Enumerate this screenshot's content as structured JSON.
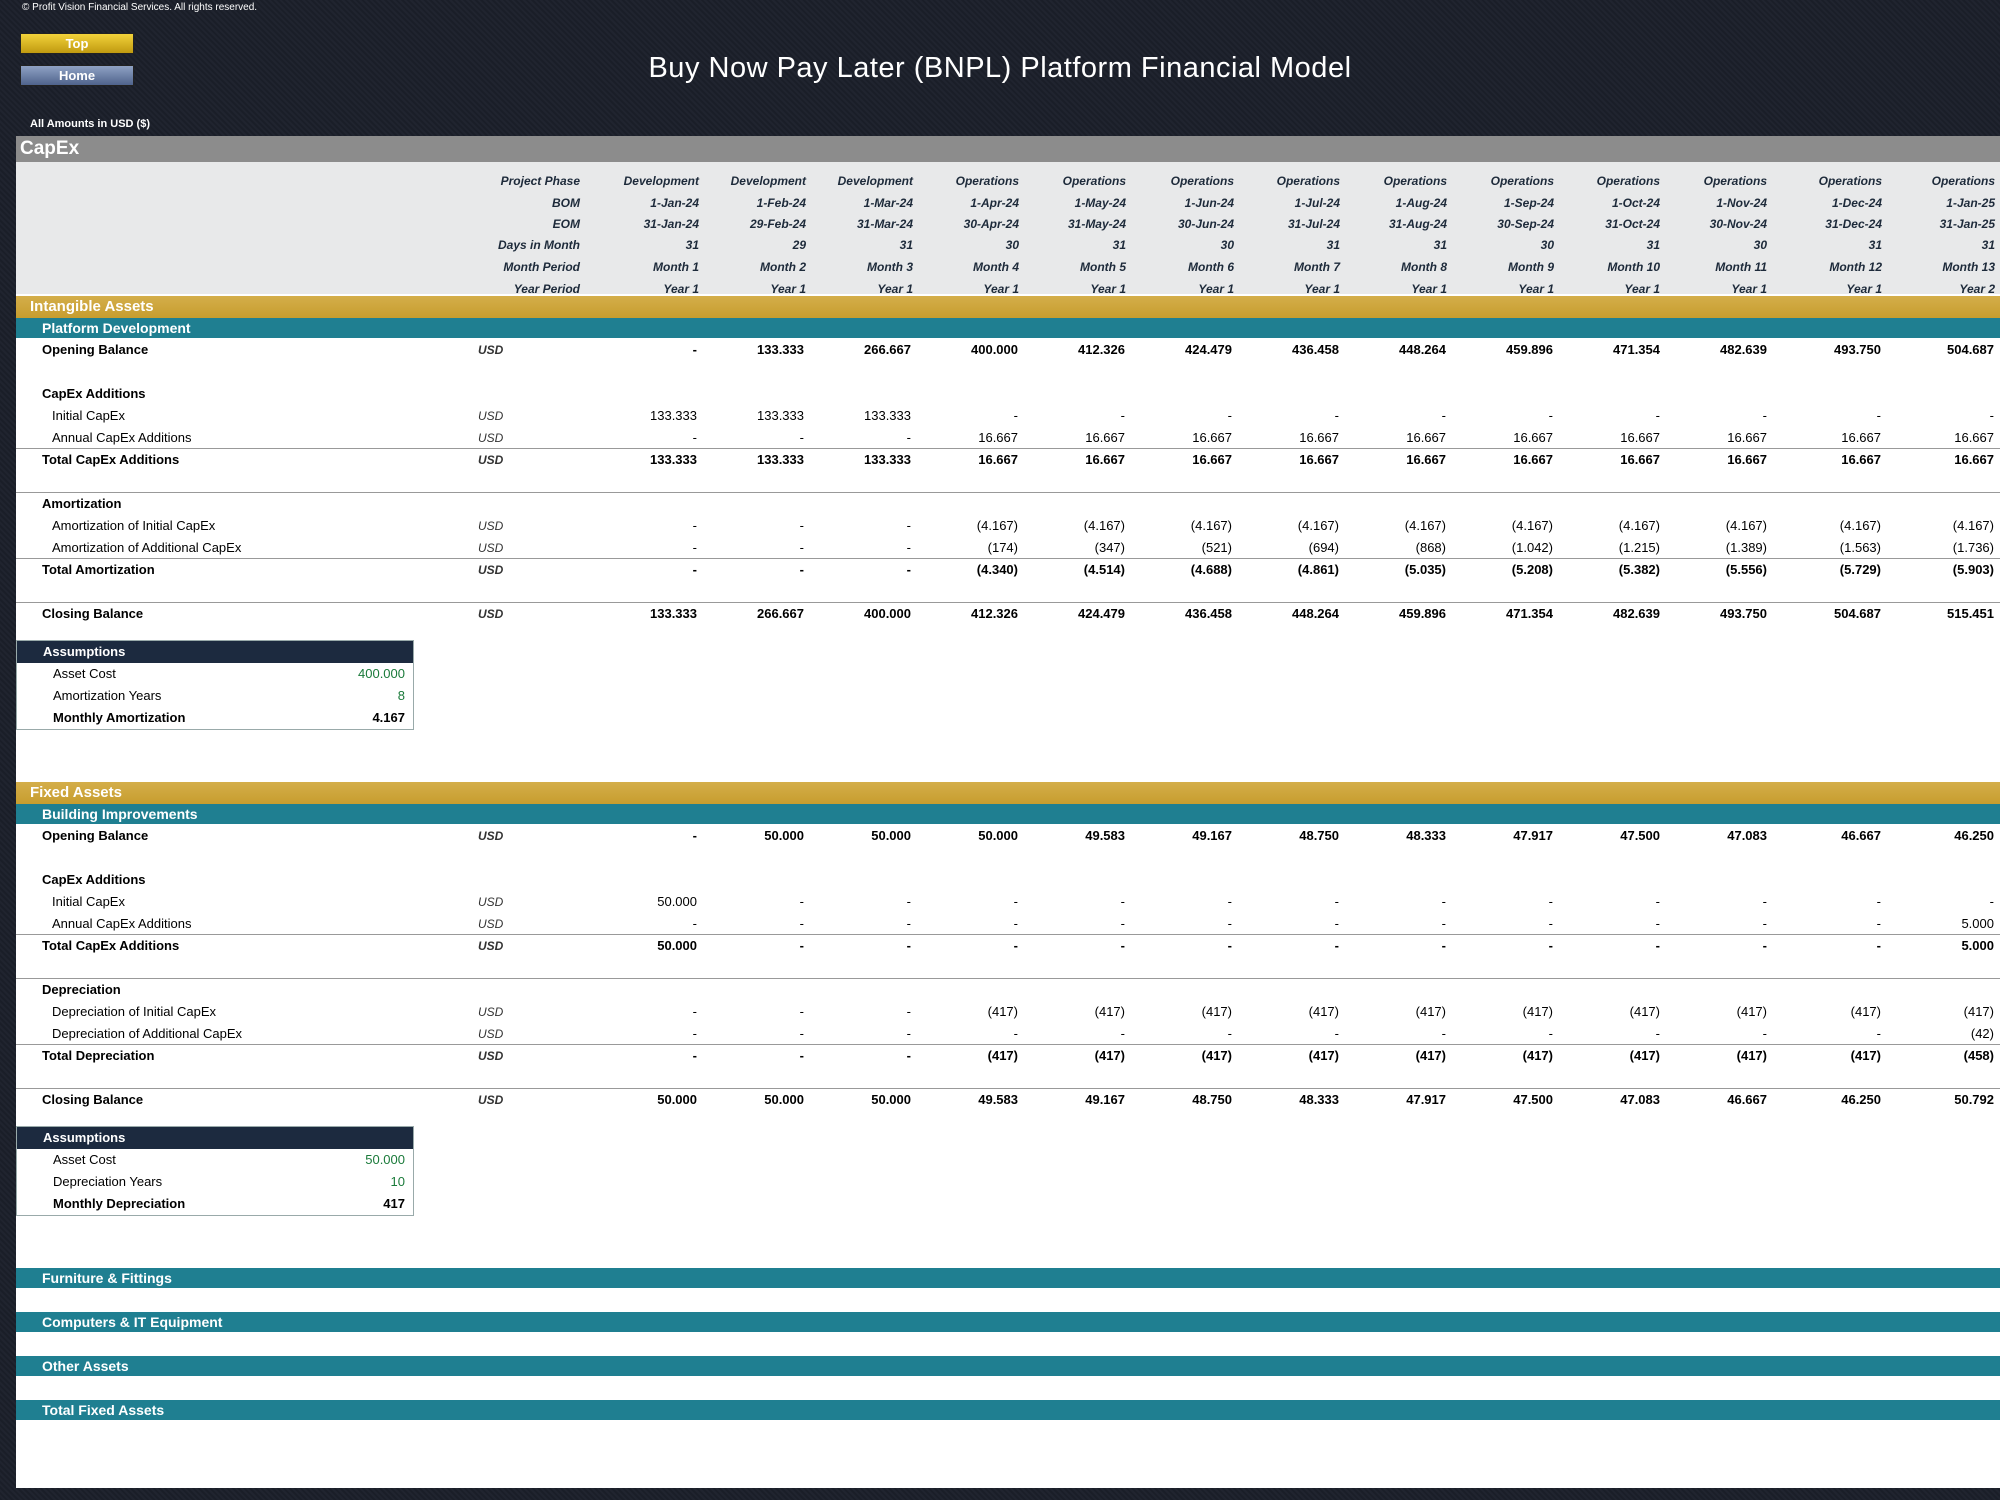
{
  "copyright": "© Profit Vision Financial Services. All rights reserved.",
  "nav": {
    "top": "Top",
    "home": "Home"
  },
  "title": "Buy Now Pay Later (BNPL) Platform Financial Model",
  "amounts_note": "All Amounts in  USD ($)",
  "section_title": "CapEx",
  "header_rows": [
    {
      "label": "Project Phase",
      "values": [
        "Development",
        "Development",
        "Development",
        "Operations",
        "Operations",
        "Operations",
        "Operations",
        "Operations",
        "Operations",
        "Operations",
        "Operations",
        "Operations",
        "Operations"
      ]
    },
    {
      "label": "BOM",
      "values": [
        "1-Jan-24",
        "1-Feb-24",
        "1-Mar-24",
        "1-Apr-24",
        "1-May-24",
        "1-Jun-24",
        "1-Jul-24",
        "1-Aug-24",
        "1-Sep-24",
        "1-Oct-24",
        "1-Nov-24",
        "1-Dec-24",
        "1-Jan-25"
      ]
    },
    {
      "label": "EOM",
      "values": [
        "31-Jan-24",
        "29-Feb-24",
        "31-Mar-24",
        "30-Apr-24",
        "31-May-24",
        "30-Jun-24",
        "31-Jul-24",
        "31-Aug-24",
        "30-Sep-24",
        "31-Oct-24",
        "30-Nov-24",
        "31-Dec-24",
        "31-Jan-25"
      ]
    },
    {
      "label": "Days in Month",
      "values": [
        "31",
        "29",
        "31",
        "30",
        "31",
        "30",
        "31",
        "31",
        "30",
        "31",
        "30",
        "31",
        "31"
      ]
    },
    {
      "label": "Month Period",
      "values": [
        "Month 1",
        "Month 2",
        "Month 3",
        "Month 4",
        "Month 5",
        "Month 6",
        "Month 7",
        "Month 8",
        "Month 9",
        "Month 10",
        "Month 11",
        "Month 12",
        "Month 13"
      ]
    },
    {
      "label": "Year Period",
      "values": [
        "Year 1",
        "Year 1",
        "Year 1",
        "Year 1",
        "Year 1",
        "Year 1",
        "Year 1",
        "Year 1",
        "Year 1",
        "Year 1",
        "Year 1",
        "Year 1",
        "Year 2"
      ]
    }
  ],
  "intangible": {
    "title": "Intangible Assets",
    "sub": "Platform Development",
    "rows": [
      {
        "label": "Opening Balance",
        "unit": "USD",
        "bold": true,
        "values": [
          "-",
          "133.333",
          "266.667",
          "400.000",
          "412.326",
          "424.479",
          "436.458",
          "448.264",
          "459.896",
          "471.354",
          "482.639",
          "493.750",
          "504.687"
        ]
      },
      {
        "label": "CapEx Additions",
        "bold": true,
        "values": []
      },
      {
        "label": "Initial CapEx",
        "unit": "USD",
        "indent": true,
        "values": [
          "133.333",
          "133.333",
          "133.333",
          "-",
          "-",
          "-",
          "-",
          "-",
          "-",
          "-",
          "-",
          "-",
          "-"
        ]
      },
      {
        "label": "Annual CapEx Additions",
        "unit": "USD",
        "indent": true,
        "values": [
          "-",
          "-",
          "-",
          "16.667",
          "16.667",
          "16.667",
          "16.667",
          "16.667",
          "16.667",
          "16.667",
          "16.667",
          "16.667",
          "16.667"
        ]
      },
      {
        "label": "Total CapEx Additions",
        "unit": "USD",
        "bold": true,
        "values": [
          "133.333",
          "133.333",
          "133.333",
          "16.667",
          "16.667",
          "16.667",
          "16.667",
          "16.667",
          "16.667",
          "16.667",
          "16.667",
          "16.667",
          "16.667"
        ]
      },
      {
        "label": "Amortization",
        "bold": true,
        "values": []
      },
      {
        "label": "Amortization of Initial CapEx",
        "unit": "USD",
        "indent": true,
        "values": [
          "-",
          "-",
          "-",
          "(4.167)",
          "(4.167)",
          "(4.167)",
          "(4.167)",
          "(4.167)",
          "(4.167)",
          "(4.167)",
          "(4.167)",
          "(4.167)",
          "(4.167)"
        ]
      },
      {
        "label": "Amortization of Additional CapEx",
        "unit": "USD",
        "indent": true,
        "values": [
          "-",
          "-",
          "-",
          "(174)",
          "(347)",
          "(521)",
          "(694)",
          "(868)",
          "(1.042)",
          "(1.215)",
          "(1.389)",
          "(1.563)",
          "(1.736)"
        ]
      },
      {
        "label": "Total Amortization",
        "unit": "USD",
        "bold": true,
        "values": [
          "-",
          "-",
          "-",
          "(4.340)",
          "(4.514)",
          "(4.688)",
          "(4.861)",
          "(5.035)",
          "(5.208)",
          "(5.382)",
          "(5.556)",
          "(5.729)",
          "(5.903)"
        ]
      },
      {
        "label": "Closing Balance",
        "unit": "USD",
        "bold": true,
        "values": [
          "133.333",
          "266.667",
          "400.000",
          "412.326",
          "424.479",
          "436.458",
          "448.264",
          "459.896",
          "471.354",
          "482.639",
          "493.750",
          "504.687",
          "515.451"
        ]
      }
    ],
    "assumptions": {
      "title": "Assumptions",
      "rows": [
        {
          "label": "Asset Cost",
          "value": "400.000"
        },
        {
          "label": "Amortization Years",
          "value": "8"
        },
        {
          "label": "Monthly Amortization",
          "value": "4.167",
          "bold": true
        }
      ]
    }
  },
  "fixed": {
    "title": "Fixed Assets",
    "sub": "Building Improvements",
    "rows": [
      {
        "label": "Opening Balance",
        "unit": "USD",
        "bold": true,
        "values": [
          "-",
          "50.000",
          "50.000",
          "50.000",
          "49.583",
          "49.167",
          "48.750",
          "48.333",
          "47.917",
          "47.500",
          "47.083",
          "46.667",
          "46.250"
        ]
      },
      {
        "label": "CapEx Additions",
        "bold": true,
        "values": []
      },
      {
        "label": "Initial CapEx",
        "unit": "USD",
        "indent": true,
        "values": [
          "50.000",
          "-",
          "-",
          "-",
          "-",
          "-",
          "-",
          "-",
          "-",
          "-",
          "-",
          "-",
          "-"
        ]
      },
      {
        "label": "Annual CapEx Additions",
        "unit": "USD",
        "indent": true,
        "values": [
          "-",
          "-",
          "-",
          "-",
          "-",
          "-",
          "-",
          "-",
          "-",
          "-",
          "-",
          "-",
          "5.000"
        ]
      },
      {
        "label": "Total CapEx Additions",
        "unit": "USD",
        "bold": true,
        "values": [
          "50.000",
          "-",
          "-",
          "-",
          "-",
          "-",
          "-",
          "-",
          "-",
          "-",
          "-",
          "-",
          "5.000"
        ]
      },
      {
        "label": "Depreciation",
        "bold": true,
        "values": []
      },
      {
        "label": "Depreciation of Initial CapEx",
        "unit": "USD",
        "indent": true,
        "values": [
          "-",
          "-",
          "-",
          "(417)",
          "(417)",
          "(417)",
          "(417)",
          "(417)",
          "(417)",
          "(417)",
          "(417)",
          "(417)",
          "(417)"
        ]
      },
      {
        "label": "Depreciation of Additional CapEx",
        "unit": "USD",
        "indent": true,
        "values": [
          "-",
          "-",
          "-",
          "-",
          "-",
          "-",
          "-",
          "-",
          "-",
          "-",
          "-",
          "-",
          "(42)"
        ]
      },
      {
        "label": "Total Depreciation",
        "unit": "USD",
        "bold": true,
        "values": [
          "-",
          "-",
          "-",
          "(417)",
          "(417)",
          "(417)",
          "(417)",
          "(417)",
          "(417)",
          "(417)",
          "(417)",
          "(417)",
          "(458)"
        ]
      },
      {
        "label": "Closing Balance",
        "unit": "USD",
        "bold": true,
        "values": [
          "50.000",
          "50.000",
          "50.000",
          "49.583",
          "49.167",
          "48.750",
          "48.333",
          "47.917",
          "47.500",
          "47.083",
          "46.667",
          "46.250",
          "50.792"
        ]
      }
    ],
    "assumptions": {
      "title": "Assumptions",
      "rows": [
        {
          "label": "Asset Cost",
          "value": "50.000"
        },
        {
          "label": "Depreciation Years",
          "value": "10"
        },
        {
          "label": "Monthly Depreciation",
          "value": "417",
          "bold": true
        }
      ]
    }
  },
  "collapsed_sections": [
    "Furniture & Fittings",
    "Computers & IT Equipment",
    "Other Assets",
    "Total Fixed Assets"
  ]
}
